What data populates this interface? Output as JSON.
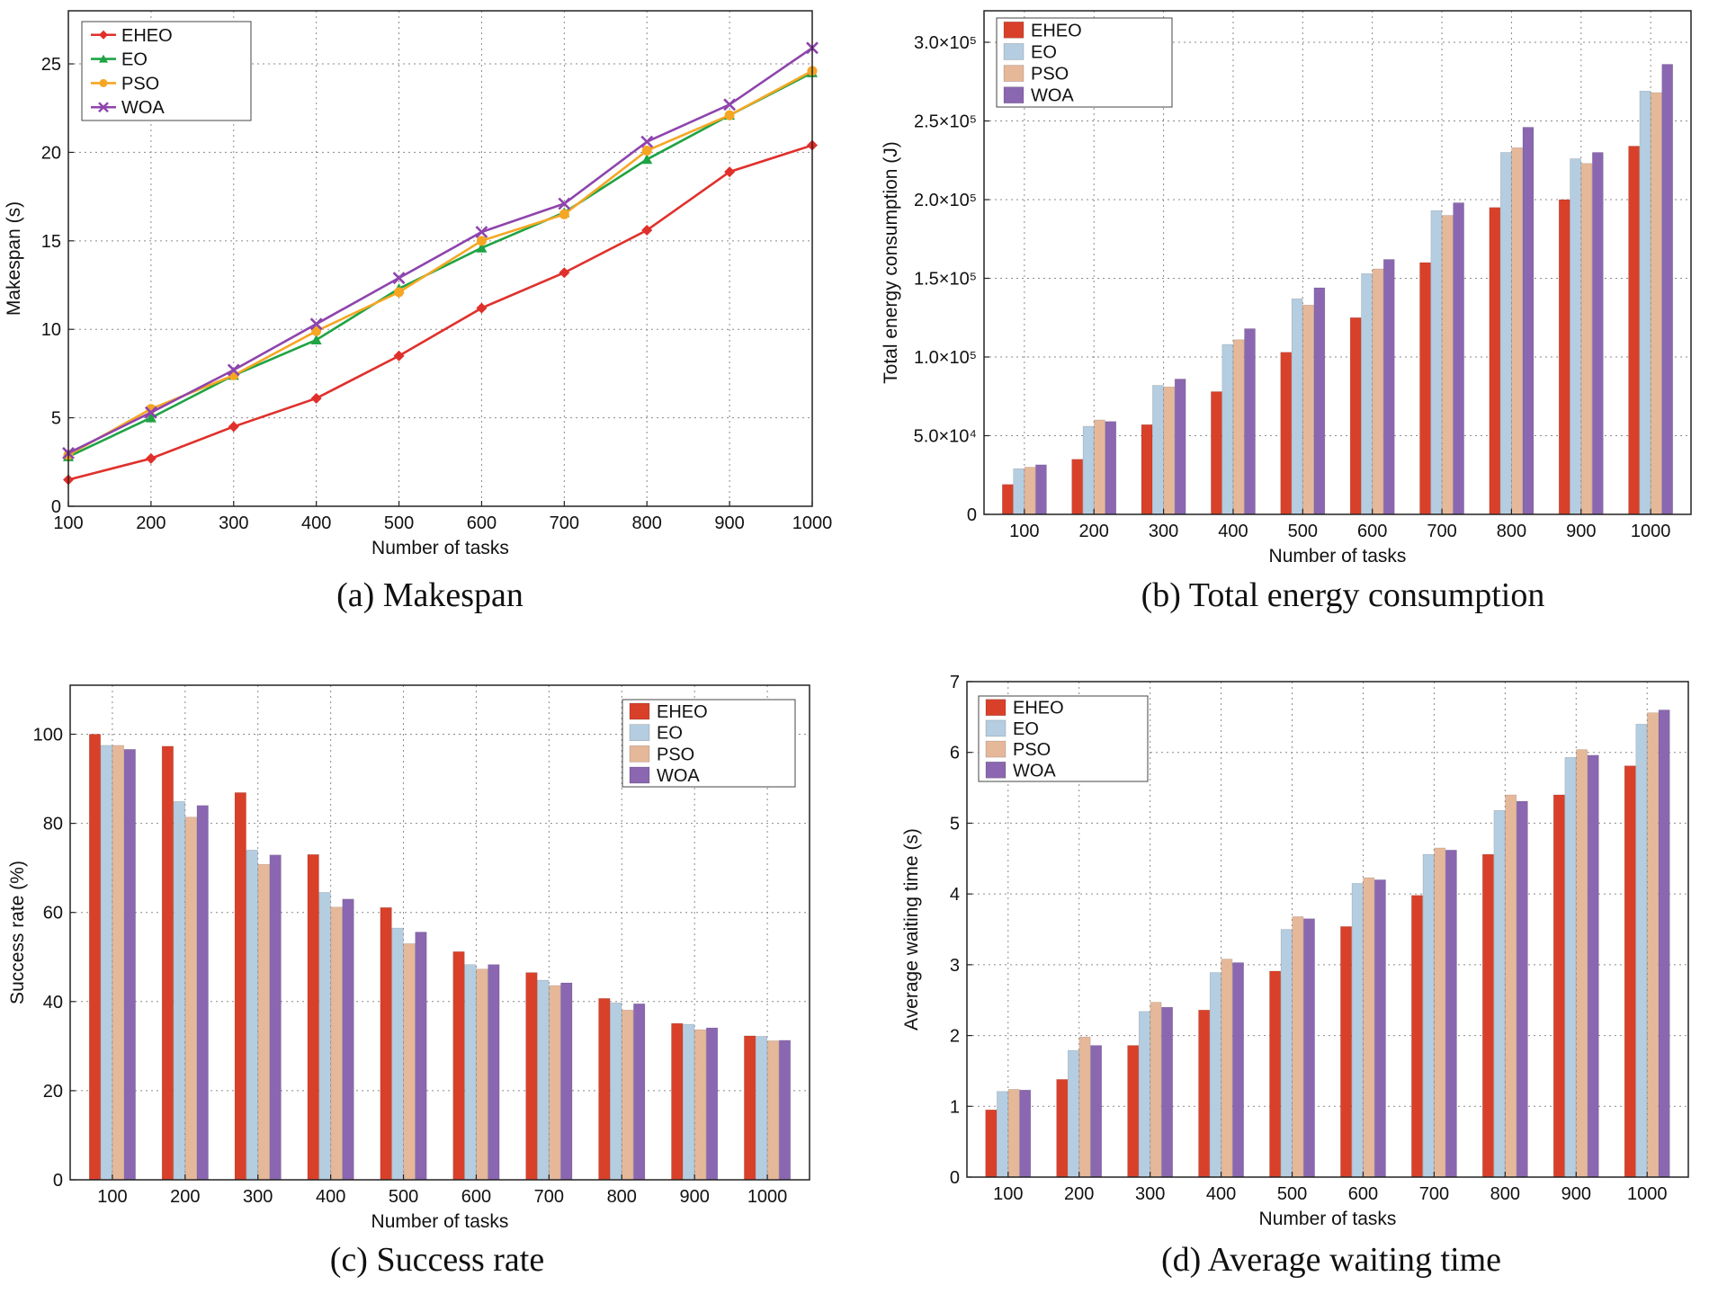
{
  "colors": {
    "EHEO": "#d9402a",
    "EO": "#b5cde0",
    "PSO": "#e6b89a",
    "WOA": "#8a67b0",
    "line_EHEO": "#e0302b",
    "line_EO": "#1fa344",
    "line_PSO": "#f5a623",
    "line_WOA": "#8e44ad"
  },
  "chart_data": [
    {
      "id": "a",
      "type": "line",
      "caption": "(a) Makespan",
      "xlabel": "Number of tasks",
      "ylabel": "Makespan (s)",
      "x": [
        100,
        200,
        300,
        400,
        500,
        600,
        700,
        800,
        900,
        1000
      ],
      "xticks": [
        "100",
        "200",
        "300",
        "400",
        "500",
        "600",
        "700",
        "800",
        "900",
        "1000"
      ],
      "ylim": [
        0,
        28
      ],
      "yticks": [
        0,
        5,
        10,
        15,
        20,
        25
      ],
      "ytick_labels": [
        "0",
        "5",
        "10",
        "15",
        "20",
        "25"
      ],
      "legend_position": "top-left",
      "series": [
        {
          "name": "EHEO",
          "marker": "diamond",
          "values": [
            1.5,
            2.7,
            4.5,
            6.1,
            8.5,
            11.2,
            13.2,
            15.6,
            18.9,
            20.4
          ]
        },
        {
          "name": "EO",
          "marker": "triangle",
          "values": [
            2.8,
            5.0,
            7.4,
            9.4,
            12.3,
            14.6,
            16.6,
            19.6,
            22.1,
            24.5
          ]
        },
        {
          "name": "PSO",
          "marker": "circle",
          "values": [
            2.9,
            5.5,
            7.4,
            9.9,
            12.1,
            15.0,
            16.5,
            20.1,
            22.1,
            24.6
          ]
        },
        {
          "name": "WOA",
          "marker": "cross",
          "values": [
            3.0,
            5.3,
            7.7,
            10.3,
            12.9,
            15.5,
            17.1,
            20.6,
            22.7,
            25.9
          ]
        }
      ]
    },
    {
      "id": "b",
      "type": "bar",
      "caption": "(b) Total energy consumption",
      "xlabel": "Number of tasks",
      "ylabel": "Total energy consumption (J)",
      "categories": [
        "100",
        "200",
        "300",
        "400",
        "500",
        "600",
        "700",
        "800",
        "900",
        "1000"
      ],
      "ylim": [
        0,
        320000
      ],
      "yticks": [
        0,
        50000,
        100000,
        150000,
        200000,
        250000,
        300000
      ],
      "ytick_labels": [
        "0",
        "5.0×10⁴",
        "1.0×10⁵",
        "1.5×10⁵",
        "2.0×10⁵",
        "2.5×10⁵",
        "3.0×10⁵"
      ],
      "legend_position": "top-left",
      "series": [
        {
          "name": "EHEO",
          "values": [
            19000,
            35000,
            57000,
            78000,
            103000,
            125000,
            160000,
            195000,
            200000,
            234000
          ]
        },
        {
          "name": "EO",
          "values": [
            29000,
            56000,
            82000,
            108000,
            137000,
            153000,
            193000,
            230000,
            226000,
            269000
          ]
        },
        {
          "name": "PSO",
          "values": [
            30000,
            60000,
            81000,
            111000,
            133000,
            156000,
            190000,
            233000,
            223000,
            268000
          ]
        },
        {
          "name": "WOA",
          "values": [
            31500,
            59000,
            86000,
            118000,
            144000,
            162000,
            198000,
            246000,
            230000,
            286000
          ]
        }
      ]
    },
    {
      "id": "c",
      "type": "bar",
      "caption": "(c) Success rate",
      "xlabel": "Number of tasks",
      "ylabel": "Success rate (%)",
      "categories": [
        "100",
        "200",
        "300",
        "400",
        "500",
        "600",
        "700",
        "800",
        "900",
        "1000"
      ],
      "ylim": [
        0,
        111
      ],
      "yticks": [
        0,
        20,
        40,
        60,
        80,
        100
      ],
      "ytick_labels": [
        "0",
        "20",
        "40",
        "60",
        "80",
        "100"
      ],
      "legend_position": "top-right",
      "series": [
        {
          "name": "EHEO",
          "values": [
            100,
            97.3,
            86.9,
            73.0,
            61.1,
            51.2,
            46.5,
            40.7,
            35.1,
            32.3
          ]
        },
        {
          "name": "EO",
          "values": [
            97.5,
            84.9,
            74.0,
            64.5,
            56.5,
            48.3,
            44.8,
            39.7,
            34.9,
            32.2
          ]
        },
        {
          "name": "PSO",
          "values": [
            97.5,
            81.4,
            70.8,
            61.2,
            53.0,
            47.3,
            43.6,
            38.1,
            33.7,
            31.2
          ]
        },
        {
          "name": "WOA",
          "values": [
            96.6,
            84.0,
            72.9,
            63.0,
            55.6,
            48.3,
            44.2,
            39.5,
            34.1,
            31.3
          ]
        }
      ]
    },
    {
      "id": "d",
      "type": "bar",
      "caption": "(d) Average waiting time",
      "xlabel": "Number of tasks",
      "ylabel": "Average waiting time (s)",
      "categories": [
        "100",
        "200",
        "300",
        "400",
        "500",
        "600",
        "700",
        "800",
        "900",
        "1000"
      ],
      "ylim": [
        0,
        7
      ],
      "yticks": [
        0,
        1,
        2,
        3,
        4,
        5,
        6,
        7
      ],
      "ytick_labels": [
        "0",
        "1",
        "2",
        "3",
        "4",
        "5",
        "6",
        "7"
      ],
      "legend_position": "top-left",
      "series": [
        {
          "name": "EHEO",
          "values": [
            0.95,
            1.38,
            1.86,
            2.36,
            2.91,
            3.54,
            3.98,
            4.56,
            5.4,
            5.81
          ]
        },
        {
          "name": "EO",
          "values": [
            1.21,
            1.79,
            2.34,
            2.89,
            3.5,
            4.15,
            4.56,
            5.18,
            5.93,
            6.4
          ]
        },
        {
          "name": "PSO",
          "values": [
            1.24,
            1.98,
            2.47,
            3.08,
            3.68,
            4.23,
            4.65,
            5.4,
            6.04,
            6.56
          ]
        },
        {
          "name": "WOA",
          "values": [
            1.23,
            1.86,
            2.4,
            3.03,
            3.65,
            4.2,
            4.62,
            5.31,
            5.96,
            6.6
          ]
        }
      ]
    }
  ]
}
